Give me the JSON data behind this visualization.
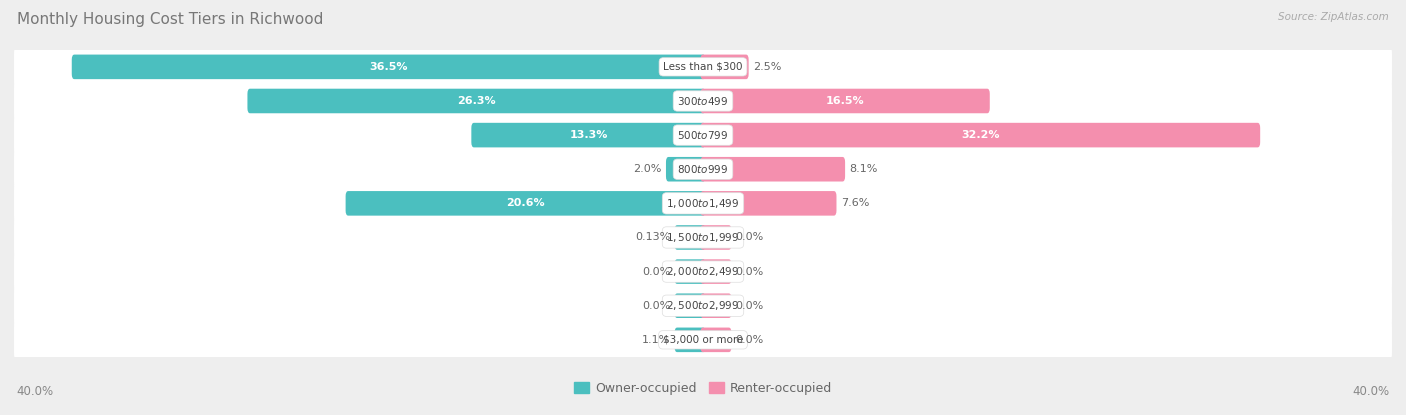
{
  "title": "Monthly Housing Cost Tiers in Richwood",
  "source": "Source: ZipAtlas.com",
  "categories": [
    "Less than $300",
    "$300 to $499",
    "$500 to $799",
    "$800 to $999",
    "$1,000 to $1,499",
    "$1,500 to $1,999",
    "$2,000 to $2,499",
    "$2,500 to $2,999",
    "$3,000 or more"
  ],
  "owner_values": [
    36.5,
    26.3,
    13.3,
    2.0,
    20.6,
    0.13,
    0.0,
    0.0,
    1.1
  ],
  "renter_values": [
    2.5,
    16.5,
    32.2,
    8.1,
    7.6,
    0.0,
    0.0,
    0.0,
    0.0
  ],
  "owner_label_values": [
    "36.5%",
    "26.3%",
    "13.3%",
    "2.0%",
    "20.6%",
    "0.13%",
    "0.0%",
    "0.0%",
    "1.1%"
  ],
  "renter_label_values": [
    "2.5%",
    "16.5%",
    "32.2%",
    "8.1%",
    "7.6%",
    "0.0%",
    "0.0%",
    "0.0%",
    "0.0%"
  ],
  "owner_color": "#4BBFBF",
  "renter_color": "#F48FAE",
  "owner_label": "Owner-occupied",
  "renter_label": "Renter-occupied",
  "axis_label_left": "40.0%",
  "axis_label_right": "40.0%",
  "max_value": 40.0,
  "min_bar_display": 1.5,
  "bg_color": "#eeeeee",
  "row_bg_color": "#ffffff",
  "gap_color": "#e0e0e0"
}
